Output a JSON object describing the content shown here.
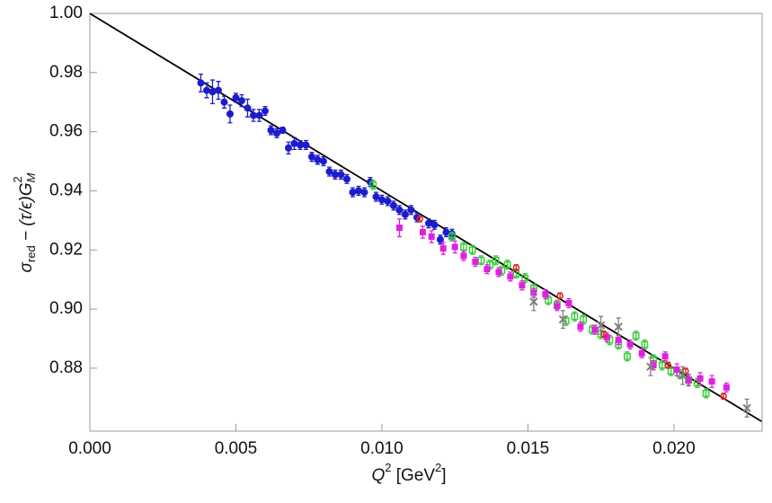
{
  "chart_data": {
    "type": "scatter",
    "xlabel": [
      "Q",
      "2",
      " [GeV",
      "2",
      "]"
    ],
    "ylabel": [
      "σ",
      "red",
      " − (τ/ϵ)G",
      "M",
      "2"
    ],
    "xlim": [
      0,
      0.02302
    ],
    "ylim": [
      0.8587,
      1.0
    ],
    "xticks": [
      {
        "value": 0,
        "label": "0.000"
      },
      {
        "value": 0.005,
        "label": "0.005"
      },
      {
        "value": 0.01,
        "label": "0.010"
      },
      {
        "value": 0.015,
        "label": "0.015"
      },
      {
        "value": 0.02,
        "label": "0.020"
      }
    ],
    "yticks": [
      {
        "value": 0.88,
        "label": "0.88"
      },
      {
        "value": 0.9,
        "label": "0.90"
      },
      {
        "value": 0.92,
        "label": "0.92"
      },
      {
        "value": 0.94,
        "label": "0.94"
      },
      {
        "value": 0.96,
        "label": "0.96"
      },
      {
        "value": 0.98,
        "label": "0.98"
      },
      {
        "value": 1.0,
        "label": "1.00"
      }
    ],
    "fit": {
      "color": "#000000",
      "x": [
        0,
        0.023
      ],
      "values": [
        1.0,
        0.862
      ]
    },
    "series": [
      {
        "marker": "filled-circle",
        "color": "#1c1ccc",
        "x": [
          0.0038,
          0.004,
          0.0042,
          0.0044,
          0.0046,
          0.0048,
          0.005,
          0.0052,
          0.0054,
          0.0056,
          0.0058,
          0.006,
          0.0062,
          0.0064,
          0.0066,
          0.0068,
          0.007,
          0.0072,
          0.0074,
          0.0076,
          0.0078,
          0.008,
          0.0082,
          0.0084,
          0.0086,
          0.0088,
          0.009,
          0.0092,
          0.0094,
          0.0096,
          0.0098,
          0.01,
          0.0102,
          0.0104,
          0.0106,
          0.0108,
          0.011,
          0.0112,
          0.0116,
          0.0118,
          0.012,
          0.0122,
          0.0124
        ],
        "values": [
          0.9765,
          0.974,
          0.9735,
          0.974,
          0.97,
          0.966,
          0.9715,
          0.9705,
          0.968,
          0.9655,
          0.9655,
          0.967,
          0.9605,
          0.9595,
          0.9605,
          0.9545,
          0.956,
          0.9555,
          0.9555,
          0.9515,
          0.9505,
          0.95,
          0.9465,
          0.9455,
          0.9455,
          0.944,
          0.9395,
          0.94,
          0.9395,
          0.943,
          0.938,
          0.937,
          0.9365,
          0.935,
          0.9335,
          0.932,
          0.9335,
          0.931,
          0.929,
          0.9285,
          0.9235,
          0.926,
          0.9255
        ],
        "errors": [
          0.003,
          0.0025,
          0.004,
          0.003,
          0.002,
          0.003,
          0.0015,
          0.002,
          0.003,
          0.002,
          0.002,
          0.0015,
          0.0015,
          0.0015,
          0.001,
          0.002,
          0.002,
          0.0015,
          0.0015,
          0.0015,
          0.0015,
          0.0015,
          0.0015,
          0.0015,
          0.0015,
          0.0015,
          0.0015,
          0.0015,
          0.0015,
          0.0015,
          0.0015,
          0.0015,
          0.0015,
          0.0015,
          0.0015,
          0.0015,
          0.0015,
          0.0015,
          0.0015,
          0.0015,
          0.0015,
          0.0015,
          0.0015
        ]
      },
      {
        "marker": "open-square",
        "color": "#33cc33",
        "x": [
          0.0097,
          0.0124,
          0.0128,
          0.0131,
          0.0134,
          0.0137,
          0.0139,
          0.0141,
          0.0143,
          0.0146,
          0.0149,
          0.0152,
          0.0157,
          0.016,
          0.0163,
          0.0166,
          0.0169,
          0.0172,
          0.0175,
          0.0178,
          0.0181,
          0.0184,
          0.0187,
          0.019,
          0.0193,
          0.0196,
          0.0199,
          0.0202,
          0.0205,
          0.0208,
          0.0211
        ],
        "values": [
          0.942,
          0.9245,
          0.921,
          0.92,
          0.9165,
          0.915,
          0.9165,
          0.913,
          0.915,
          0.912,
          0.9105,
          0.907,
          0.903,
          0.9015,
          0.896,
          0.8975,
          0.8965,
          0.893,
          0.8915,
          0.8895,
          0.888,
          0.884,
          0.891,
          0.888,
          0.883,
          0.881,
          0.879,
          0.878,
          0.876,
          0.875,
          0.8715
        ],
        "errors": [
          0.0015,
          0.0015,
          0.0015,
          0.0015,
          0.0015,
          0.0015,
          0.0015,
          0.0015,
          0.0015,
          0.0015,
          0.0015,
          0.0015,
          0.0015,
          0.0015,
          0.0015,
          0.0015,
          0.0015,
          0.0015,
          0.0015,
          0.0015,
          0.0015,
          0.0015,
          0.0015,
          0.0015,
          0.0015,
          0.0015,
          0.0015,
          0.0015,
          0.0015,
          0.0015,
          0.0015
        ]
      },
      {
        "marker": "filled-square",
        "color": "#e020e0",
        "x": [
          0.0106,
          0.0114,
          0.0117,
          0.0121,
          0.0125,
          0.0128,
          0.0132,
          0.0136,
          0.014,
          0.0144,
          0.0148,
          0.0152,
          0.0156,
          0.016,
          0.0164,
          0.0168,
          0.0173,
          0.0177,
          0.0181,
          0.0185,
          0.0189,
          0.0193,
          0.0197,
          0.0201,
          0.0205,
          0.0209,
          0.0213,
          0.0218
        ],
        "values": [
          0.9275,
          0.926,
          0.9245,
          0.9205,
          0.921,
          0.918,
          0.916,
          0.9135,
          0.9125,
          0.911,
          0.908,
          0.9055,
          0.905,
          0.901,
          0.902,
          0.894,
          0.893,
          0.8905,
          0.8895,
          0.888,
          0.885,
          0.881,
          0.884,
          0.8795,
          0.876,
          0.8765,
          0.8755,
          0.8735
        ],
        "errors": [
          0.003,
          0.002,
          0.002,
          0.002,
          0.002,
          0.0015,
          0.0015,
          0.0015,
          0.0015,
          0.0015,
          0.0015,
          0.0015,
          0.0015,
          0.0015,
          0.0015,
          0.0015,
          0.0015,
          0.0015,
          0.0015,
          0.0015,
          0.0015,
          0.0015,
          0.0015,
          0.002,
          0.002,
          0.002,
          0.002,
          0.0015
        ]
      },
      {
        "marker": "open-circle",
        "color": "#e02020",
        "x": [
          0.0113,
          0.0146,
          0.0161,
          0.0176,
          0.0198,
          0.0204,
          0.0217
        ],
        "values": [
          0.9305,
          0.914,
          0.9045,
          0.8915,
          0.881,
          0.879,
          0.8705
        ],
        "errors": [
          0.001,
          0.001,
          0.001,
          0.001,
          0.001,
          0.001,
          0.001
        ]
      },
      {
        "marker": "cross",
        "color": "#808080",
        "x": [
          0.0152,
          0.0162,
          0.0175,
          0.0181,
          0.0192,
          0.0203,
          0.0225
        ],
        "values": [
          0.9025,
          0.8965,
          0.8945,
          0.894,
          0.8805,
          0.8775,
          0.8665
        ],
        "errors": [
          0.003,
          0.003,
          0.003,
          0.003,
          0.003,
          0.003,
          0.003
        ]
      }
    ]
  }
}
